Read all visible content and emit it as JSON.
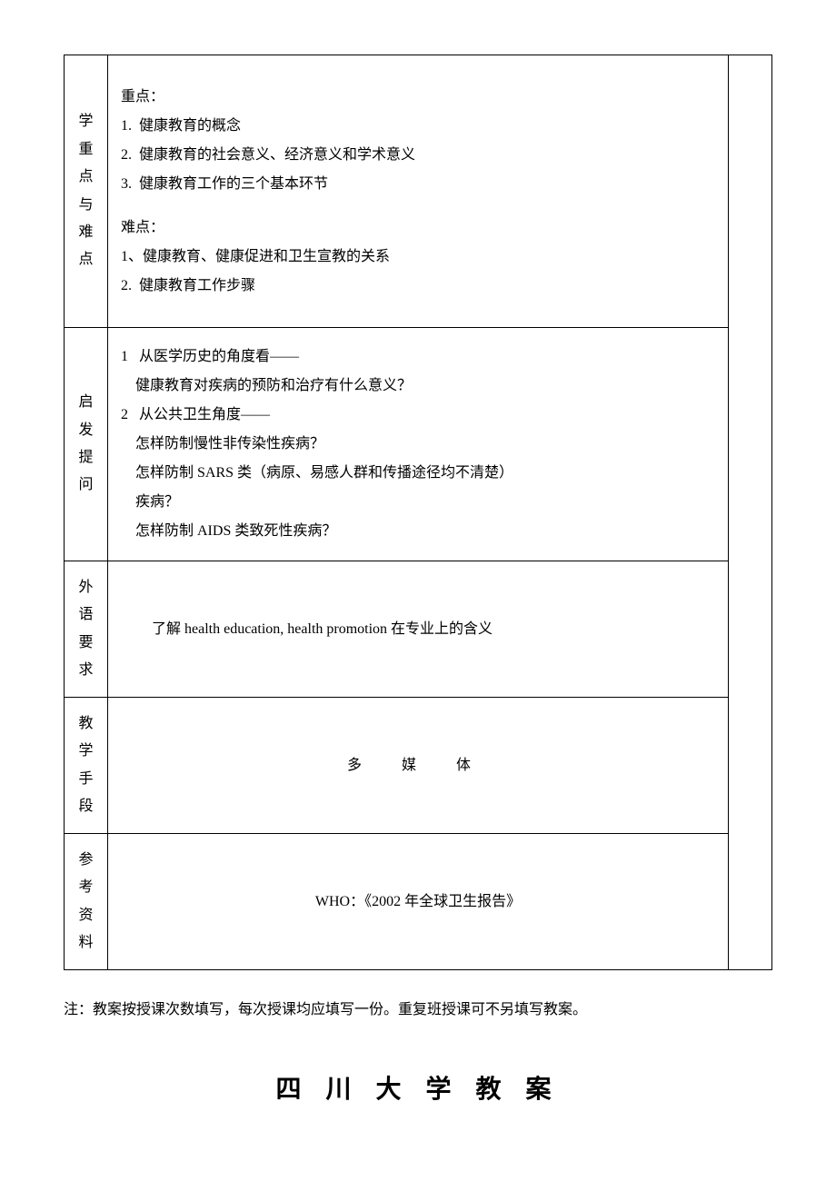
{
  "rows": {
    "row1": {
      "label": "学重点与难点",
      "heading1": "重点：",
      "items1": "1.  健康教育的概念\n2.  健康教育的社会意义、经济意义和学术意义\n3.  健康教育工作的三个基本环节",
      "heading2": "难点：",
      "items2": "1、健康教育、健康促进和卫生宣教的关系\n2.  健康教育工作步骤"
    },
    "row2": {
      "label": "启发提问",
      "content": "1   从医学历史的角度看——\n    健康教育对疾病的预防和治疗有什么意义？\n2   从公共卫生角度——\n    怎样防制慢性非传染性疾病？\n    怎样防制 SARS 类（病原、易感人群和传播途径均不清楚）\n    疾病？\n    怎样防制 AIDS 类致死性疾病？"
    },
    "row3": {
      "label": "外语要求",
      "content": "了解 health education, health promotion 在专业上的含义"
    },
    "row4": {
      "label": "教学手段",
      "content": "多  媒  体"
    },
    "row5": {
      "label": "参考资料",
      "content": "WHO：《2002 年全球卫生报告》"
    }
  },
  "note": "注：教案按授课次数填写，每次授课均应填写一份。重复班授课可不另填写教案。",
  "title": "四 川 大 学 教 案",
  "colors": {
    "text": "#000000",
    "background": "#ffffff",
    "border": "#000000"
  },
  "typography": {
    "body_fontsize": 16,
    "title_fontsize": 28,
    "font_family": "SimSun"
  }
}
